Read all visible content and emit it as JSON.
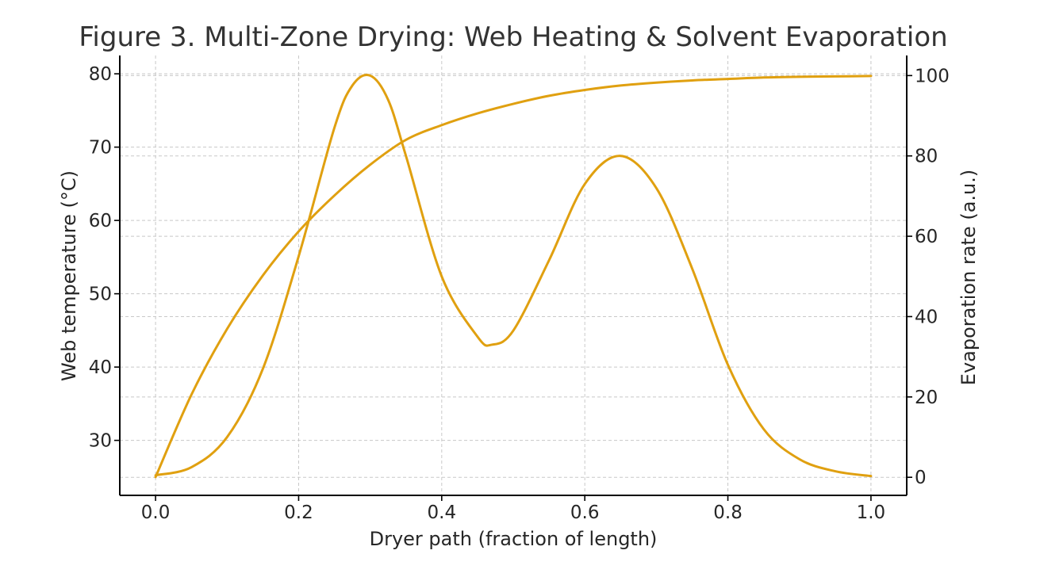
{
  "chart_data": {
    "type": "line",
    "title": "Figure 3. Multi-Zone Drying: Web Heating & Solvent Evaporation",
    "xlabel": "Dryer path (fraction of length)",
    "ylabel": "Web temperature (°C)",
    "y2label": "Evaporation rate (a.u.)",
    "xlim": [
      -0.05,
      1.05
    ],
    "ylim": [
      22.5,
      82.5
    ],
    "y2lim": [
      -4.5,
      105
    ],
    "xticks": [
      0.0,
      0.2,
      0.4,
      0.6,
      0.8,
      1.0
    ],
    "xtick_labels": [
      "0.0",
      "0.2",
      "0.4",
      "0.6",
      "0.8",
      "1.0"
    ],
    "yticks": [
      30,
      40,
      50,
      60,
      70,
      80
    ],
    "ytick_labels": [
      "30",
      "40",
      "50",
      "60",
      "70",
      "80"
    ],
    "y2ticks": [
      0,
      20,
      40,
      60,
      80,
      100
    ],
    "y2tick_labels": [
      "0",
      "20",
      "40",
      "60",
      "80",
      "100"
    ],
    "grid": true,
    "line_color": "#e0a010",
    "series": [
      {
        "axis": "left",
        "x": [
          0.0,
          0.05,
          0.1,
          0.15,
          0.2,
          0.25,
          0.3,
          0.35,
          0.4,
          0.45,
          0.5,
          0.55,
          0.6,
          0.65,
          0.7,
          0.75,
          0.8,
          0.85,
          0.9,
          0.95,
          1.0
        ],
        "y": [
          25.0,
          36.2,
          45.2,
          52.5,
          58.5,
          63.4,
          67.6,
          71.0,
          73.0,
          74.6,
          75.9,
          77.0,
          77.8,
          78.4,
          78.8,
          79.1,
          79.3,
          79.5,
          79.6,
          79.65,
          79.7
        ]
      },
      {
        "axis": "right",
        "x": [
          0.0,
          0.05,
          0.1,
          0.15,
          0.2,
          0.25,
          0.275,
          0.3,
          0.325,
          0.35,
          0.4,
          0.45,
          0.47,
          0.5,
          0.55,
          0.6,
          0.65,
          0.7,
          0.75,
          0.8,
          0.85,
          0.9,
          0.95,
          1.0
        ],
        "y": [
          0.5,
          2.5,
          10.0,
          27.0,
          55.0,
          87.0,
          97.5,
          100.0,
          94.0,
          80.0,
          50.0,
          35.0,
          33.0,
          36.5,
          54.0,
          73.0,
          80.0,
          72.0,
          52.0,
          28.0,
          12.0,
          4.5,
          1.5,
          0.3
        ]
      }
    ]
  }
}
